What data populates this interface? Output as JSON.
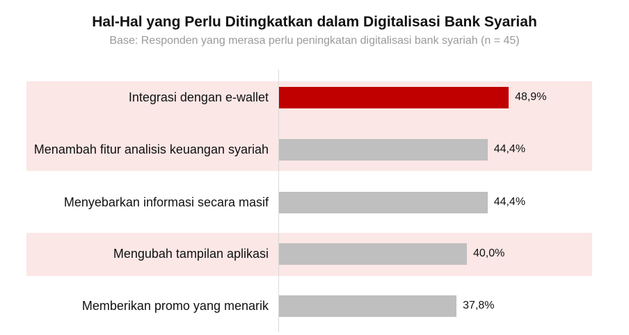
{
  "chart_data": {
    "type": "bar",
    "orientation": "horizontal",
    "title": "Hal-Hal yang Perlu Ditingkatkan dalam Digitalisasi Bank Syariah",
    "subtitle": "Base: Responden yang merasa perlu peningkatan digitalisasi bank syariah (n = 45)",
    "categories": [
      "Integrasi dengan e-wallet",
      "Menambah fitur analisis keuangan syariah",
      "Menyebarkan informasi secara masif",
      "Mengubah tampilan aplikasi",
      "Memberikan promo yang menarik"
    ],
    "values": [
      48.9,
      44.4,
      44.4,
      40.0,
      37.8
    ],
    "value_labels": [
      "48,9%",
      "44,4%",
      "44,4%",
      "40,0%",
      "37,8%"
    ],
    "highlight_index": 0,
    "colors": {
      "highlight": "#c00000",
      "default": "#bfbfbf",
      "band": "#fbe7e6",
      "axis": "#d9d9d9"
    },
    "xlim": [
      0,
      60
    ],
    "grid": false,
    "legend": "none"
  }
}
